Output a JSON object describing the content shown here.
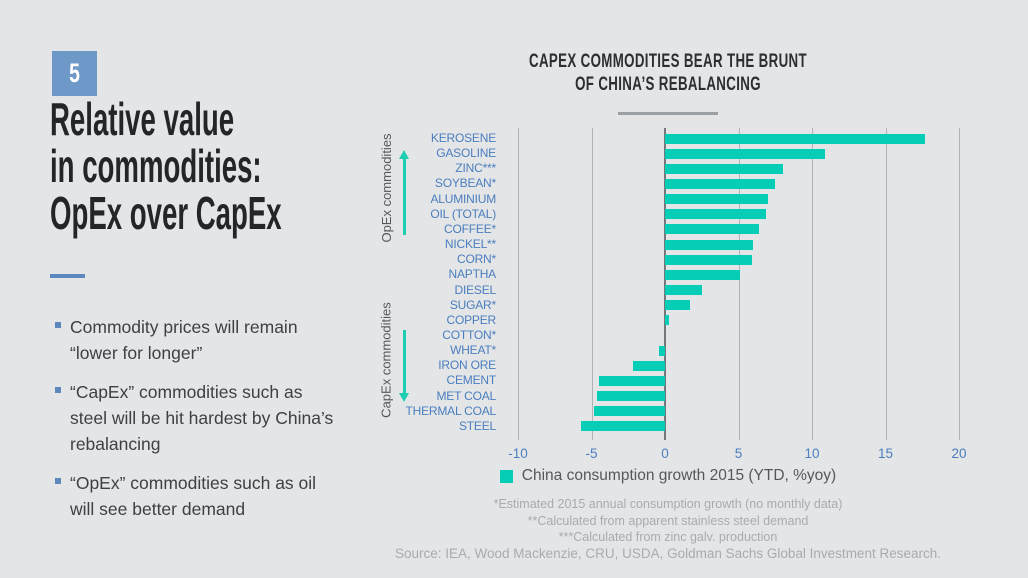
{
  "slide": {
    "number": "5",
    "title": "Relative value\nin commodities:\nOpEx over CapEx",
    "bullets": [
      "Commodity prices will remain\n“lower for longer”",
      "“CapEx” commodities such as\nsteel will be hit hardest by China’s\nrebalancing",
      "“OpEx” commodities such as oil\nwill see better demand"
    ]
  },
  "chart": {
    "title": "CAPEX COMMODITIES BEAR THE BRUNT\nOF CHINA’S REBALANCING",
    "group_labels": {
      "opex": "OpEx commodities",
      "capex": "CapEx commodities"
    },
    "legend": "China consumption growth 2015 (YTD, %yoy)",
    "footnotes": [
      "*Estimated 2015 annual consumption growth (no monthly data)",
      "**Calculated from apparent stainless steel demand",
      "***Calculated from zinc galv. production"
    ],
    "source": "Source: IEA, Wood Mackenzie, CRU, USDA, Goldman Sachs Global Investment Research."
  },
  "chart_data": {
    "type": "bar",
    "orientation": "horizontal",
    "title": "CAPEX COMMODITIES BEAR THE BRUNT OF CHINA'S REBALANCING",
    "series_name": "China consumption growth 2015 (YTD, %yoy)",
    "categories": [
      "KEROSENE",
      "GASOLINE",
      "ZINC***",
      "SOYBEAN*",
      "ALUMINIUM",
      "OIL (TOTAL)",
      "COFFEE*",
      "NICKEL**",
      "CORN*",
      "NAPTHA",
      "DIESEL",
      "SUGAR*",
      "COPPER",
      "COTTON*",
      "WHEAT*",
      "IRON ORE",
      "CEMENT",
      "MET COAL",
      "THERMAL COAL",
      "STEEL"
    ],
    "values": [
      17.7,
      10.9,
      8.0,
      7.5,
      7.0,
      6.9,
      6.4,
      6.0,
      5.9,
      5.1,
      2.5,
      1.7,
      0.3,
      0.0,
      -0.4,
      -2.2,
      -4.5,
      -4.6,
      -4.8,
      -5.7
    ],
    "xlim": [
      -10,
      20
    ],
    "xticks": [
      -10,
      -5,
      0,
      5,
      10,
      15,
      20
    ],
    "grid": "vertical",
    "legend_position": "bottom",
    "bar_color": "#06cdb6"
  },
  "colors": {
    "background": "#e4e5e7",
    "accent_blue": "#5c88bd",
    "number_box_blue": "#6d98c8",
    "label_blue": "#4a7ebe",
    "bar_teal": "#06cdb6",
    "arrow_teal": "#1fceb0"
  }
}
